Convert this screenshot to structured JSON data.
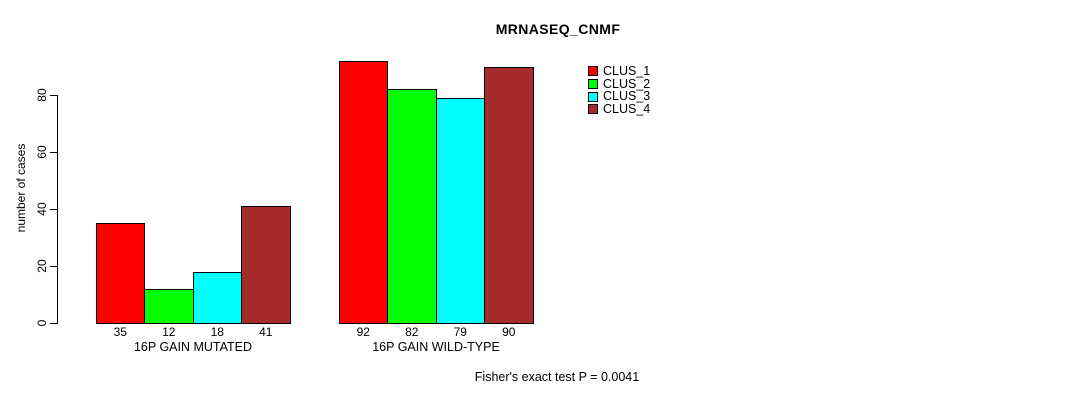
{
  "chart_data": {
    "type": "bar",
    "title": "MRNASEQ_CNMF",
    "ylabel": "number of cases",
    "xlabel": "",
    "categories": [
      "16P GAIN MUTATED",
      "16P GAIN WILD-TYPE"
    ],
    "series": [
      {
        "name": "CLUS_1",
        "color": "#FF0000",
        "values": [
          35,
          92
        ]
      },
      {
        "name": "CLUS_2",
        "color": "#00FF00",
        "values": [
          12,
          82
        ]
      },
      {
        "name": "CLUS_3",
        "color": "#00FFFF",
        "values": [
          18,
          79
        ]
      },
      {
        "name": "CLUS_4",
        "color": "#A52A2A",
        "values": [
          41,
          90
        ]
      }
    ],
    "yticks": [
      0,
      20,
      40,
      60,
      80
    ],
    "ylim": [
      0,
      95
    ],
    "grid": false,
    "bar_value_labels_shown": true,
    "legend_position": "top-right",
    "annotation": "Fisher's exact test P = 0.0041"
  }
}
